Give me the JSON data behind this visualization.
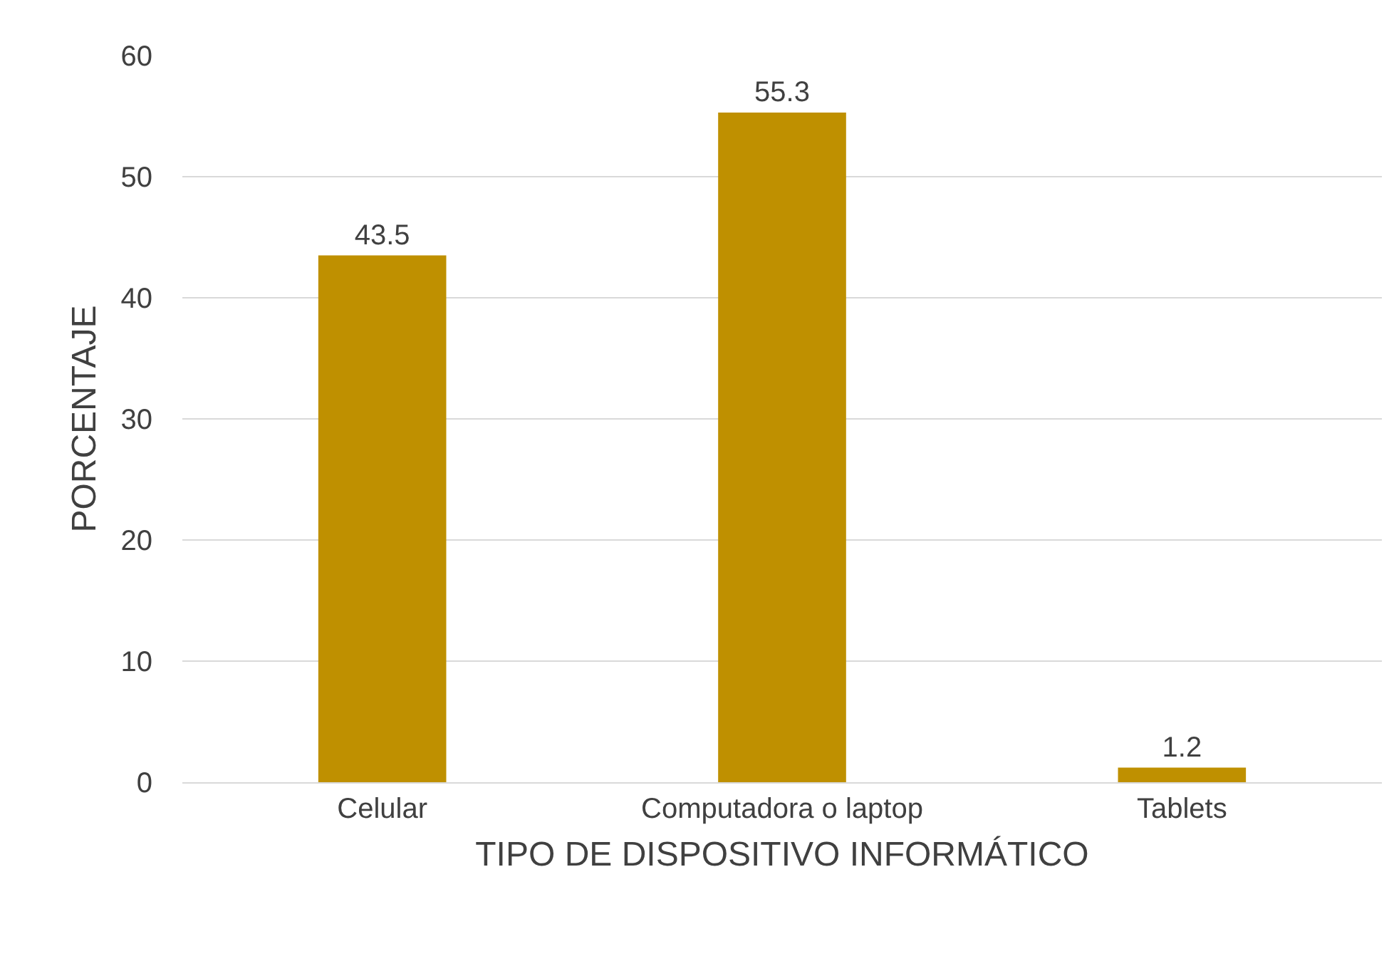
{
  "chart_data": {
    "type": "bar",
    "xlabel": "TIPO DE DISPOSITIVO INFORMÁTICO",
    "ylabel": "PORCENTAJE",
    "categories": [
      "Celular",
      "Computadora o laptop",
      "Tablets"
    ],
    "values": [
      43.5,
      55.3,
      1.2
    ],
    "color": "#bf9000",
    "ylim": [
      0,
      60
    ],
    "yticks": [
      0,
      10,
      20,
      30,
      40,
      50,
      60
    ],
    "grid": "y",
    "data_labels": true
  }
}
